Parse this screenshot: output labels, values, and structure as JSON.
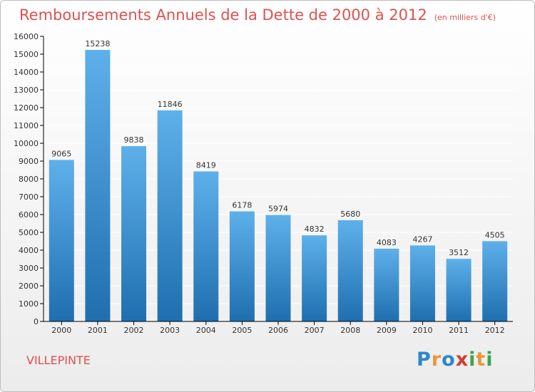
{
  "title": "Remboursements Annuels de la Dette de 2000 à 2012",
  "subtitle": "(en milliers d'€)",
  "city": "VILLEPINTE",
  "logo": {
    "letters": [
      "P",
      "r",
      "o",
      "x",
      "i",
      "t",
      "i"
    ],
    "colors": [
      "#2f86c9",
      "#e8973a",
      "#2f86c9",
      "#d63c2c",
      "#3aa64a",
      "#e8973a",
      "#3aa64a"
    ]
  },
  "colors": {
    "bar_top": "#5eb0ea",
    "bar_bottom": "#1f6fb0",
    "axis": "#000000",
    "grid": "#ffffff",
    "text": "#333333",
    "title": "#e0504f"
  },
  "chart_data": {
    "type": "bar",
    "title": "Remboursements Annuels de la Dette de 2000 à 2012",
    "subtitle": "(en milliers d'€)",
    "categories": [
      "2000",
      "2001",
      "2002",
      "2003",
      "2004",
      "2005",
      "2006",
      "2007",
      "2008",
      "2009",
      "2010",
      "2011",
      "2012"
    ],
    "values": [
      9065,
      15238,
      9838,
      11846,
      8419,
      6178,
      5974,
      4832,
      5680,
      4083,
      4267,
      3512,
      4505
    ],
    "value_labels": [
      "9065",
      "15238",
      "9838",
      "11846",
      "8419",
      "6178",
      "5974",
      "4832",
      "5680",
      "4083",
      "4267",
      "3512",
      "4505"
    ],
    "yticks": [
      "0",
      "1000",
      "2000",
      "3000",
      "4000",
      "5000",
      "6000",
      "7000",
      "8000",
      "9000",
      "10000",
      "11000",
      "12000",
      "13000",
      "14000",
      "15000",
      "16000"
    ],
    "ylim": [
      0,
      16000
    ],
    "grid": true,
    "legend": "none"
  }
}
